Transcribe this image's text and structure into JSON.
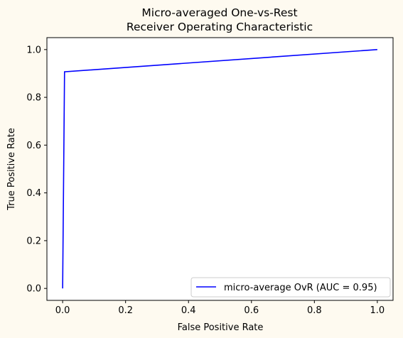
{
  "chart_data": {
    "type": "line",
    "title": [
      "Micro-averaged One-vs-Rest",
      "Receiver Operating Characteristic"
    ],
    "xlabel": "False Positive Rate",
    "ylabel": "True Positive Rate",
    "xlim": [
      -0.05,
      1.05
    ],
    "ylim": [
      -0.05,
      1.05
    ],
    "xticks": [
      0.0,
      0.2,
      0.4,
      0.6,
      0.8,
      1.0
    ],
    "xtick_labels": [
      "0.0",
      "0.2",
      "0.4",
      "0.6",
      "0.8",
      "1.0"
    ],
    "yticks": [
      0.0,
      0.2,
      0.4,
      0.6,
      0.8,
      1.0
    ],
    "ytick_labels": [
      "0.0",
      "0.2",
      "0.4",
      "0.6",
      "0.8",
      "1.0"
    ],
    "grid": false,
    "legend_position": "lower-right",
    "series": [
      {
        "name": "micro-average OvR (AUC = 0.95)",
        "color": "#0000ff",
        "x": [
          0.0,
          0.006,
          1.0
        ],
        "y": [
          0.0,
          0.907,
          1.0
        ]
      }
    ]
  },
  "colors": {
    "figure_background": "#fefaf0",
    "plot_background": "#ffffff",
    "line": "#0000ff"
  }
}
